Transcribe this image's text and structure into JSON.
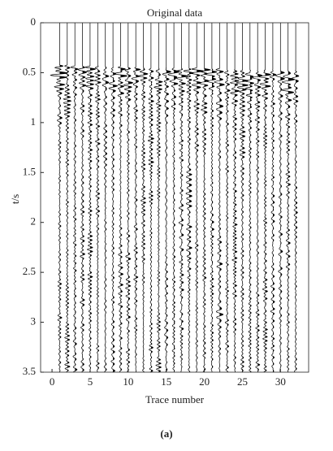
{
  "chart_data": {
    "type": "wiggle",
    "title": "Original data",
    "x_label": "Trace number",
    "y_label": "t/s",
    "caption": "(a)",
    "x": [
      1,
      2,
      3,
      4,
      5,
      6,
      7,
      8,
      9,
      10,
      11,
      12,
      13,
      14,
      15,
      16,
      17,
      18,
      19,
      20,
      21,
      22,
      23,
      24,
      25,
      26,
      27,
      28,
      29,
      30,
      31,
      32
    ],
    "xlim": [
      -1.5,
      33.7
    ],
    "xticks": [
      0,
      5,
      10,
      15,
      20,
      25,
      30
    ],
    "ylim": [
      0,
      3.5
    ],
    "yticks": [
      0,
      0.5,
      1,
      1.5,
      2,
      2.5,
      3,
      3.5
    ],
    "y_reversed": true,
    "color": "#000000"
  }
}
